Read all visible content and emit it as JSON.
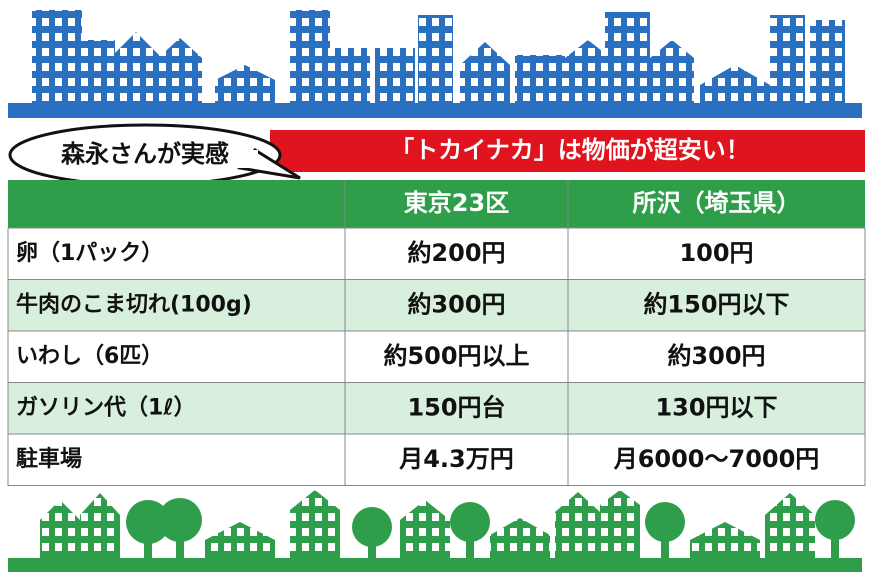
{
  "header": {
    "bubble": "森永さんが実感",
    "banner": "「トカイナカ」は物価が超安い！"
  },
  "table": {
    "columns": [
      "東京23区",
      "所沢（埼玉県）"
    ],
    "rows": [
      [
        "卵（1パック）",
        "約200円",
        "100円"
      ],
      [
        "牛肉のこま切れ(100g)",
        "約300円",
        "約150円以下"
      ],
      [
        "いわし（6匹）",
        "約500円以上",
        "約300円"
      ],
      [
        "ガソリン代（1ℓ）",
        "150円台",
        "130円以下"
      ],
      [
        "駐車場",
        "月4.3万円",
        "月6000〜7000円"
      ]
    ]
  }
}
